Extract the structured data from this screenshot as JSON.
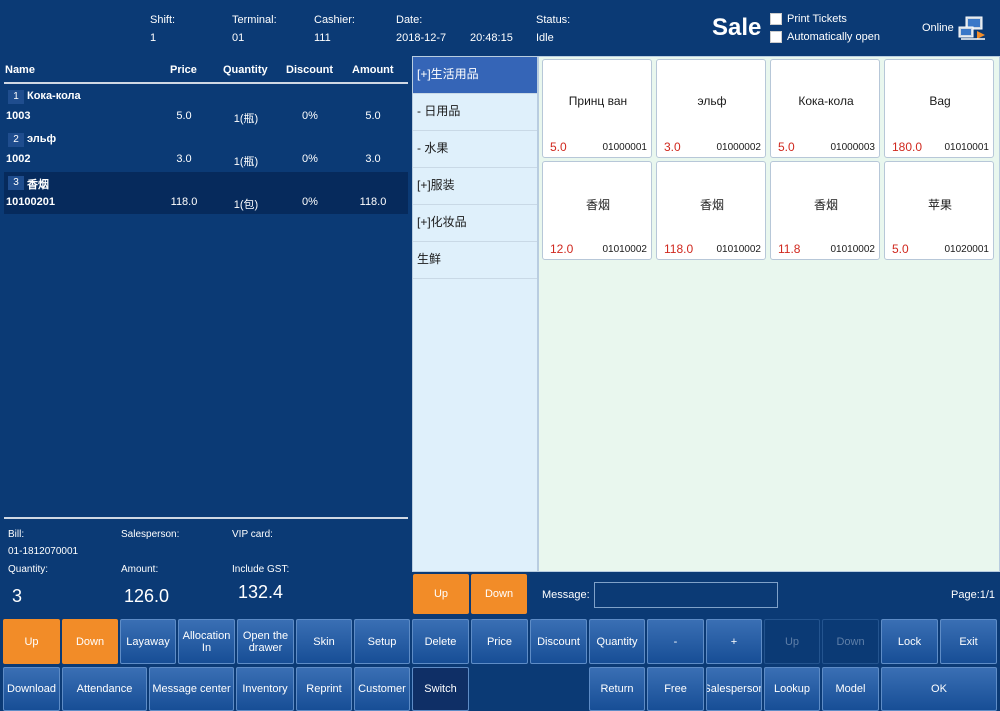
{
  "header": {
    "shift": {
      "label": "Shift:",
      "value": "1"
    },
    "terminal": {
      "label": "Terminal:",
      "value": "01"
    },
    "cashier": {
      "label": "Cashier:",
      "value": "111"
    },
    "date": {
      "label": "Date:",
      "value": "2018-12-7",
      "time": "20:48:15"
    },
    "status": {
      "label": "Status:",
      "value": "Idle"
    },
    "mode": "Sale",
    "print_tickets": "Print Tickets",
    "auto_open": "Automatically open",
    "online": "Online"
  },
  "table": {
    "columns": [
      "Name",
      "Price",
      "Quantity",
      "Discount",
      "Amount"
    ],
    "rows": [
      {
        "idx": "1",
        "name": "Кока-кола",
        "code": "1003",
        "price": "5.0",
        "qty": "1(瓶)",
        "discount": "0%",
        "amount": "5.0"
      },
      {
        "idx": "2",
        "name": "эльф",
        "code": "1002",
        "price": "3.0",
        "qty": "1(瓶)",
        "discount": "0%",
        "amount": "3.0"
      },
      {
        "idx": "3",
        "name": "香烟",
        "code": "10100201",
        "price": "118.0",
        "qty": "1(包)",
        "discount": "0%",
        "amount": "118.0"
      }
    ]
  },
  "summary": {
    "bill_label": "Bill:",
    "bill": "01-1812070001",
    "salesperson_label": "Salesperson:",
    "vip_label": "VIP card:",
    "quantity_label": "Quantity:",
    "quantity": "3",
    "amount_label": "Amount:",
    "amount": "126.0",
    "gst_label": "Include GST:",
    "gst": "132.4"
  },
  "categories": [
    "[+]生活用品",
    " - 日用品",
    " - 水果",
    "[+]服装",
    "[+]化妆品",
    "生鲜"
  ],
  "products": [
    {
      "name": "Принц ван",
      "price": "5.0",
      "code": "01000001"
    },
    {
      "name": "эльф",
      "price": "3.0",
      "code": "01000002"
    },
    {
      "name": "Кока-кола",
      "price": "5.0",
      "code": "01000003"
    },
    {
      "name": "Bag",
      "price": "180.0",
      "code": "01010001"
    },
    {
      "name": "香烟",
      "price": "12.0",
      "code": "01010002"
    },
    {
      "name": "香烟",
      "price": "118.0",
      "code": "01010002"
    },
    {
      "name": "香烟",
      "price": "11.8",
      "code": "01010002"
    },
    {
      "name": "苹果",
      "price": "5.0",
      "code": "01020001"
    }
  ],
  "nav": {
    "up": "Up",
    "down": "Down",
    "message": "Message:",
    "page": "Page:1/1"
  },
  "buttons_row1": [
    "Up",
    "Down",
    "Layaway",
    "Allocation In",
    "Open the drawer",
    "Skin",
    "Setup",
    "Delete",
    "Price",
    "Discount",
    "Quantity",
    "-",
    "+",
    "Up",
    "Down",
    "Lock",
    "Exit"
  ],
  "buttons_row2": [
    "Download",
    "Attendance",
    "Message center",
    "Inventory",
    "Reprint",
    "Customer",
    "Switch",
    "Return",
    "Free",
    "Salesperson",
    "Lookup",
    "Model",
    "OK"
  ],
  "colors": {
    "accent_orange": "#f28c28",
    "bg_navy": "#0b3a75",
    "price_red": "#d0281e",
    "selected_category": "#3565b7"
  }
}
